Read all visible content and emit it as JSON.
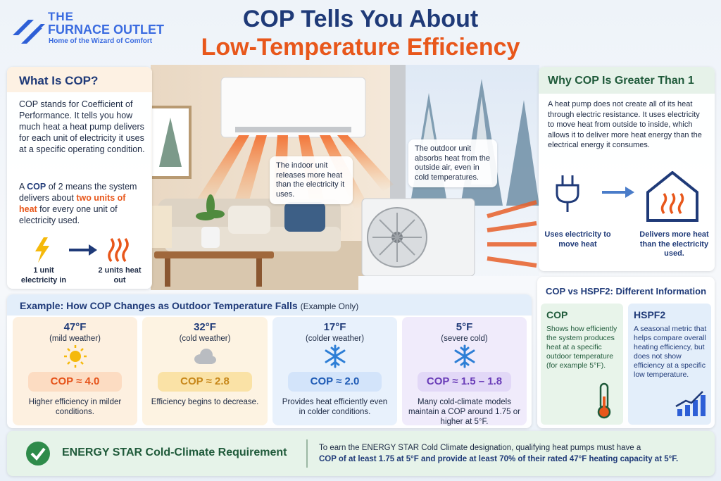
{
  "logo": {
    "line1": "THE",
    "line2": "FURNACE OUTLET",
    "tagline": "Home of the Wizard of Comfort"
  },
  "title": {
    "line1": "COP Tells You About",
    "line2": "Low-Temperature Efficiency"
  },
  "what_is_cop": {
    "heading": "What Is COP?",
    "definition": "COP stands for Coefficient of Performance. It tells you how much heat a heat pump delivers for each unit of electricity it uses at a specific operating condition.",
    "example": [
      "A ",
      "COP",
      " of 2 means the system delivers about ",
      "two units of heat",
      " for every one unit of electricity used."
    ],
    "input_label": "1 unit electricity in",
    "output_label": "2 units heat out"
  },
  "scene": {
    "indoor_callout": "The indoor unit releases more heat than the electricity it uses.",
    "outdoor_callout": "The outdoor unit absorbs heat from the outside air, even in cold temperatures."
  },
  "why_cop": {
    "heading": "Why COP Is Greater Than 1",
    "text": "A heat pump does not create all of its heat through electric resistance. It uses electricity to move heat from outside to inside, which allows it to deliver more heat energy than the electrical energy it consumes.",
    "left_label": "Uses electricity to move heat",
    "right_label": "Delivers more heat than the electricity used."
  },
  "example": {
    "heading": "Example: How COP Changes as Outdoor Temperature Falls",
    "note": "(Example Only)",
    "cards": [
      {
        "temperature": "47°F",
        "condition": "(mild weather)",
        "cop": "COP ≈ 4.0",
        "description": "Higher efficiency in milder conditions."
      },
      {
        "temperature": "32°F",
        "condition": "(cold weather)",
        "cop": "COP ≈ 2.8",
        "description": "Efficiency begins to decrease."
      },
      {
        "temperature": "17°F",
        "condition": "(colder weather)",
        "cop": "COP ≈ 2.0",
        "description": "Provides heat efficiently even in colder conditions."
      },
      {
        "temperature": "5°F",
        "condition": "(severe cold)",
        "cop": "COP ≈ 1.5 – 1.8",
        "description": "Many cold-climate models maintain a COP around 1.75 or higher at 5°F."
      }
    ]
  },
  "comparison": {
    "heading": "COP vs HSPF2: Different Information",
    "cop": {
      "title": "COP",
      "text": "Shows how efficiently the system produces heat at a specific outdoor temperature (for example 5°F)."
    },
    "hspf2": {
      "title": "HSPF2",
      "text": "A seasonal metric that helps compare overall heating efficiency, but does not show efficiency at a specific low temperature."
    }
  },
  "footer": {
    "heading": "ENERGY STAR Cold-Climate Requirement",
    "text": "To earn the ENERGY STAR Cold Climate designation, qualifying heat pumps must have a",
    "emphasis": "COP of at least 1.75 at 5°F and provide at least 70% of their rated 47°F heating capacity at 5°F."
  }
}
